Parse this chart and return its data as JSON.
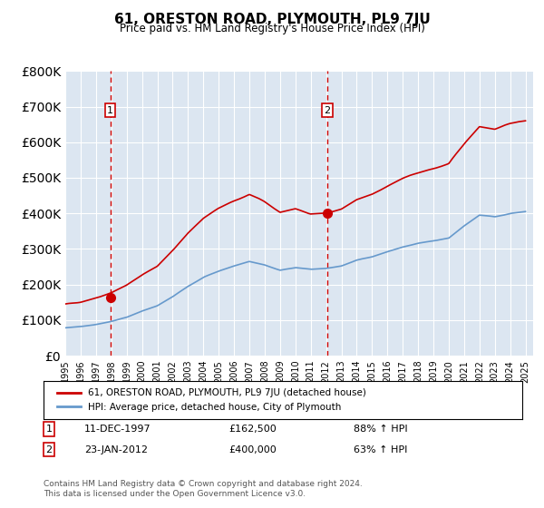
{
  "title": "61, ORESTON ROAD, PLYMOUTH, PL9 7JU",
  "subtitle": "Price paid vs. HM Land Registry's House Price Index (HPI)",
  "background_color": "#dce6f1",
  "plot_bg_color": "#dce6f1",
  "red_line_color": "#cc0000",
  "blue_line_color": "#6699cc",
  "dashed_line_color": "#cc0000",
  "sale1_x": 1997.94,
  "sale1_y": 162500,
  "sale1_label": "1",
  "sale1_date": "11-DEC-1997",
  "sale1_price": "£162,500",
  "sale1_hpi": "88% ↑ HPI",
  "sale2_x": 2012.07,
  "sale2_y": 400000,
  "sale2_label": "2",
  "sale2_date": "23-JAN-2012",
  "sale2_price": "£400,000",
  "sale2_hpi": "63% ↑ HPI",
  "ylim": [
    0,
    800000
  ],
  "xlim": [
    1995,
    2025.5
  ],
  "ylabel_ticks": [
    0,
    100000,
    200000,
    300000,
    400000,
    500000,
    600000,
    700000,
    800000
  ],
  "legend_line1": "61, ORESTON ROAD, PLYMOUTH, PL9 7JU (detached house)",
  "legend_line2": "HPI: Average price, detached house, City of Plymouth",
  "footer": "Contains HM Land Registry data © Crown copyright and database right 2024.\nThis data is licensed under the Open Government Licence v3.0.",
  "xtick_labels": [
    "1995",
    "1996",
    "1997",
    "1998",
    "1999",
    "2000",
    "2001",
    "2002",
    "2003",
    "2004",
    "2005",
    "2006",
    "2007",
    "2008",
    "2009",
    "2010",
    "2011",
    "2012",
    "2013",
    "2014",
    "2015",
    "2016",
    "2017",
    "2018",
    "2019",
    "2020",
    "2021",
    "2022",
    "2023",
    "2024",
    "2025"
  ]
}
